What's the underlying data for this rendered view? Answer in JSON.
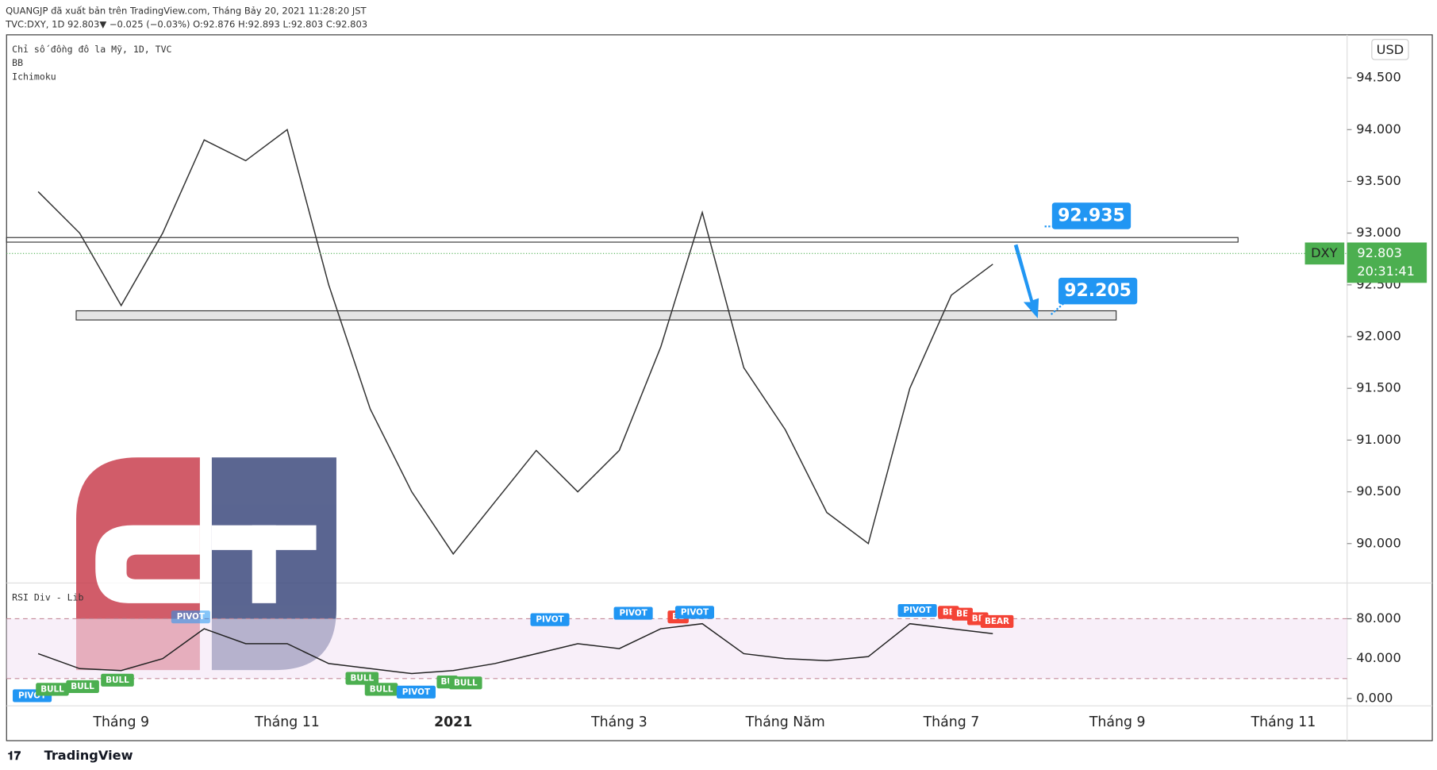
{
  "header": {
    "line1": "QUANGJP đã xuất bản trên TradingView.com, Tháng Bảy 20, 2021 11:28:20 JST",
    "line2": "TVC:DXY, 1D 92.803▼ −0.025 (−0.03%) O:92.876 H:92.893 L:92.803 C:92.803"
  },
  "legend": {
    "symbol": "Chỉ số đồng đô la Mỹ, 1D, TVC",
    "bb": "BB",
    "ichimoku": "Ichimoku"
  },
  "currency": "USD",
  "symbol_tag": "DXY",
  "countdown": "20:31:41",
  "footer": "TradingView",
  "chart_data": [
    {
      "type": "line",
      "x": [
        null,
        null,
        "Tháng 9",
        null,
        null,
        null,
        "Tháng 11",
        null,
        null,
        null,
        "2021",
        null,
        null,
        null,
        "Tháng 3",
        null,
        null,
        null,
        "Tháng Năm",
        null,
        null,
        null,
        "Tháng 7",
        null,
        null,
        null,
        "Tháng 9",
        null,
        null,
        null,
        "Tháng 11",
        null,
        null
      ],
      "series": [
        {
          "name": "Chỉ số đồng đô la Mỹ, 1D, TVC",
          "color": "#333333",
          "values": [
            93.4,
            93.0,
            92.3,
            93.0,
            93.9,
            93.7,
            94.0,
            92.5,
            91.3,
            90.5,
            89.9,
            90.4,
            90.9,
            90.5,
            90.9,
            91.9,
            93.2,
            91.7,
            91.1,
            90.3,
            90.0,
            91.5,
            92.4,
            92.7,
            null,
            null,
            null,
            null,
            null,
            null,
            null,
            null,
            null
          ]
        }
      ],
      "ylim": [
        89.619,
        94.916
      ],
      "yticks": [
        {
          "value": 90,
          "label": "90.000"
        },
        {
          "value": 90.5,
          "label": "90.500"
        },
        {
          "value": 91,
          "label": "91.000"
        },
        {
          "value": 91.5,
          "label": "91.500"
        },
        {
          "value": 92,
          "label": "92.000"
        },
        {
          "value": 92.5,
          "label": "92.500"
        },
        {
          "value": 93,
          "label": "93.000"
        },
        {
          "value": 93.5,
          "label": "93.500"
        },
        {
          "value": 94,
          "label": "94.000"
        },
        {
          "value": 94.5,
          "label": "94.500"
        }
      ],
      "last_price": 92.803,
      "levels": [
        92.935,
        92.205
      ],
      "level_color": "#2196f3"
    },
    {
      "type": "line",
      "series": [
        {
          "name": "RSI Div - Lib",
          "color": "#222222",
          "values": [
            45,
            30,
            28,
            40,
            70,
            55,
            55,
            35,
            30,
            25,
            28,
            35,
            45,
            55,
            50,
            70,
            75,
            45,
            40,
            38,
            42,
            75,
            70,
            65,
            null,
            null,
            null,
            null,
            null,
            null,
            null,
            null,
            null
          ]
        }
      ],
      "ylim": [
        -7.4,
        115.9
      ],
      "yticks": [
        {
          "value": 0,
          "label": "0.000"
        },
        {
          "value": 40,
          "label": "40.000"
        },
        {
          "value": 80,
          "label": "80.000"
        }
      ],
      "band": [
        20,
        80
      ],
      "signals": [
        "PIVOT",
        "BULL",
        "BULL",
        "BULL",
        "PIVOT",
        "BULL",
        "BULL",
        "PIVOT",
        "BU",
        "BULL",
        "PIVOT",
        "PIVOT",
        "BE",
        "PIVOT",
        "PIVOT",
        "BE",
        "BE",
        "BE",
        "BEAR"
      ]
    }
  ]
}
